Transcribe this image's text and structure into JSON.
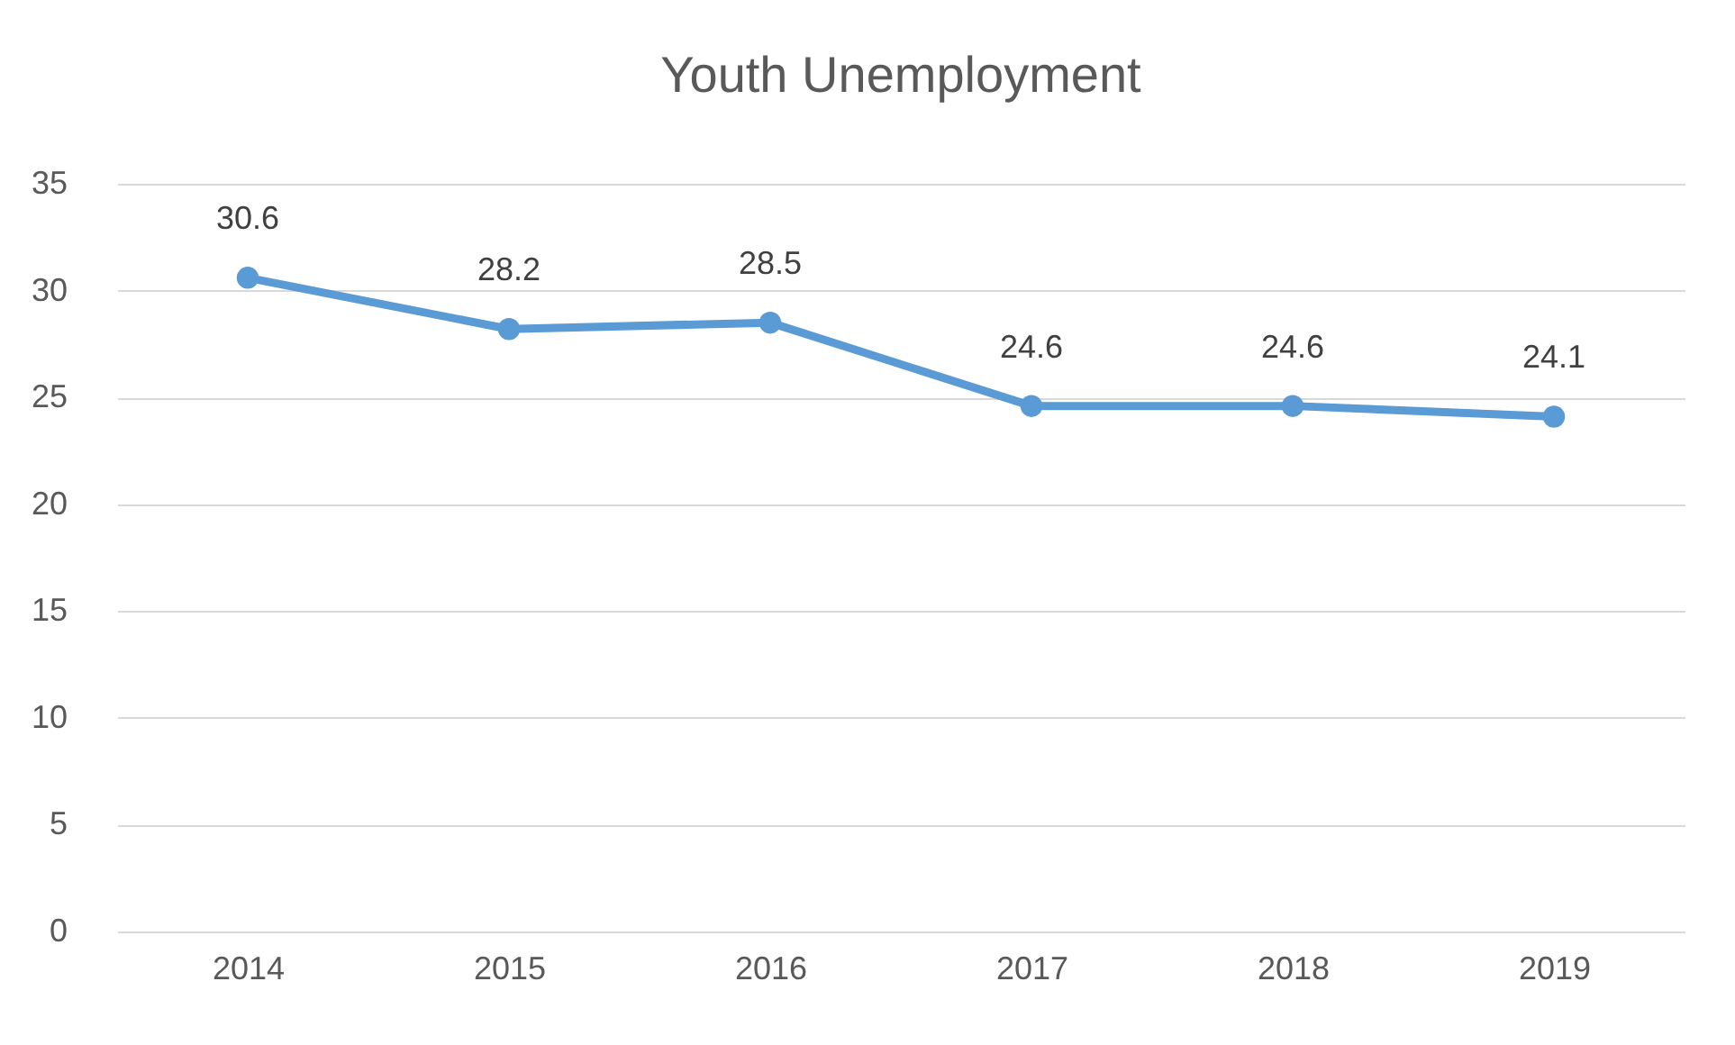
{
  "chart_data": {
    "type": "line",
    "title": "Youth Unemployment",
    "categories": [
      "2014",
      "2015",
      "2016",
      "2017",
      "2018",
      "2019"
    ],
    "series": [
      {
        "color": "#5b9bd5",
        "values": [
          30.6,
          28.2,
          28.5,
          24.6,
          24.6,
          24.1
        ]
      }
    ],
    "ylim": [
      0,
      35
    ],
    "yticks": [
      0,
      5,
      10,
      15,
      20,
      25,
      30,
      35
    ],
    "grid": "y",
    "marker": "circle",
    "data_labels": true,
    "legend": false
  }
}
